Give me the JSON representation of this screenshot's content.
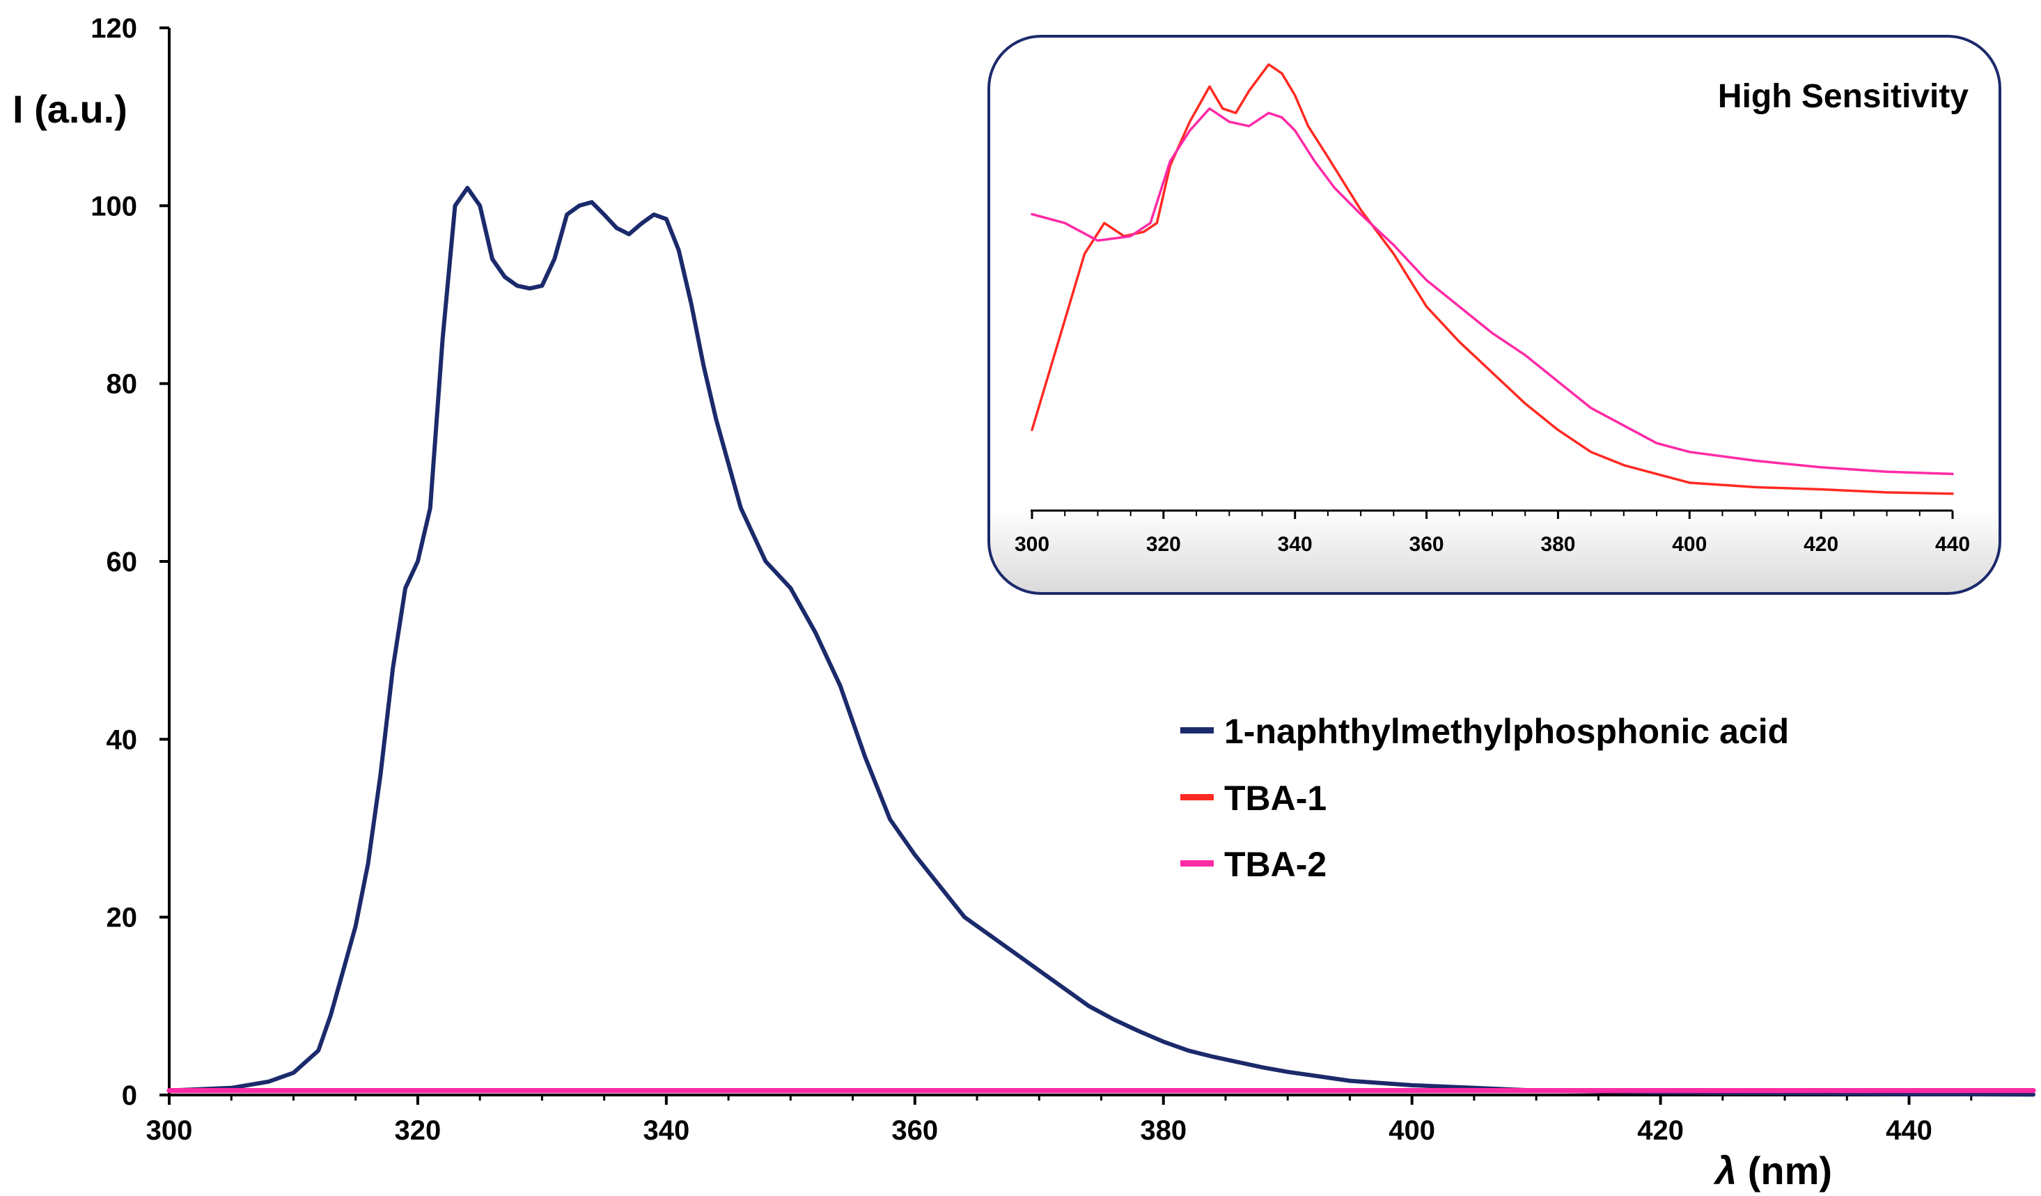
{
  "chart_data": [
    {
      "type": "line",
      "name": "main",
      "ylabel": "I (a.u.)",
      "xlabel_symbol": "λ",
      "xlabel_unit": " (nm)",
      "xlim": [
        300,
        450
      ],
      "ylim": [
        0,
        120
      ],
      "xticks": [
        300,
        320,
        340,
        360,
        380,
        400,
        420,
        440
      ],
      "yticks": [
        0,
        20,
        40,
        60,
        80,
        100,
        120
      ],
      "series": [
        {
          "name": "1-naphthylmethylphosphonic acid",
          "color": "#1b2a6b",
          "x": [
            300,
            305,
            308,
            310,
            312,
            313,
            314,
            315,
            316,
            317,
            318,
            319,
            320,
            321,
            322,
            323,
            324,
            325,
            326,
            327,
            328,
            329,
            330,
            331,
            332,
            333,
            334,
            335,
            336,
            337,
            338,
            339,
            340,
            341,
            342,
            343,
            344,
            345,
            346,
            348,
            350,
            352,
            354,
            356,
            358,
            360,
            362,
            364,
            366,
            368,
            370,
            372,
            374,
            376,
            378,
            380,
            382,
            384,
            386,
            388,
            390,
            395,
            400,
            405,
            410,
            420,
            430,
            440,
            450
          ],
          "y": [
            0.5,
            0.8,
            1.5,
            2.5,
            5,
            9,
            14,
            19,
            26,
            36,
            48,
            57,
            60,
            66,
            85,
            100,
            102,
            100,
            94,
            92,
            91,
            90.7,
            91,
            94,
            99,
            100,
            100.4,
            99,
            97.5,
            96.8,
            98,
            99,
            98.5,
            95,
            89,
            82,
            76,
            71,
            66,
            60,
            57,
            52,
            46,
            38,
            31,
            27,
            23.5,
            20,
            18,
            16,
            14,
            12,
            10,
            8.5,
            7.2,
            6,
            5,
            4.3,
            3.7,
            3.1,
            2.6,
            1.6,
            1.1,
            0.8,
            0.5,
            0.3,
            0.2,
            0.1,
            0.05
          ]
        },
        {
          "name": "TBA-1",
          "color": "#ff2a22",
          "x": [
            300,
            450
          ],
          "y": [
            0.5,
            0.5
          ]
        },
        {
          "name": "TBA-2",
          "color": "#ff2aa6",
          "x": [
            300,
            450
          ],
          "y": [
            0.5,
            0.5
          ]
        }
      ],
      "legend_position": "center-right"
    },
    {
      "type": "line",
      "name": "inset",
      "title": "High Sensitivity",
      "xlim": [
        300,
        440
      ],
      "xticks": [
        300,
        320,
        340,
        360,
        380,
        400,
        420,
        440
      ],
      "ylim": [
        0,
        100
      ],
      "series": [
        {
          "name": "TBA-1",
          "color": "#ff2a22",
          "x": [
            300,
            304,
            308,
            311,
            314,
            317,
            319,
            321,
            324,
            327,
            329,
            331,
            333,
            336,
            338,
            340,
            342,
            345,
            350,
            355,
            360,
            365,
            370,
            375,
            380,
            385,
            390,
            395,
            400,
            410,
            420,
            430,
            440
          ],
          "y": [
            15,
            35,
            55,
            62,
            59,
            60,
            62,
            75,
            85,
            93,
            88,
            87,
            92,
            98,
            96,
            91,
            84,
            77,
            65,
            55,
            43,
            35,
            28,
            21,
            15,
            10,
            7,
            5,
            3,
            2,
            1.5,
            0.8,
            0.5
          ]
        },
        {
          "name": "TBA-2",
          "color": "#ff2aa6",
          "x": [
            300,
            305,
            310,
            315,
            318,
            321,
            324,
            327,
            330,
            333,
            336,
            338,
            340,
            343,
            346,
            350,
            355,
            360,
            365,
            370,
            375,
            380,
            385,
            390,
            395,
            400,
            410,
            420,
            430,
            440
          ],
          "y": [
            64,
            62,
            58,
            59,
            62,
            76,
            83,
            88,
            85,
            84,
            87,
            86,
            83,
            76,
            70,
            64,
            57,
            49,
            43,
            37,
            32,
            26,
            20,
            16,
            12,
            10,
            8,
            6.5,
            5.5,
            5
          ]
        }
      ]
    }
  ]
}
